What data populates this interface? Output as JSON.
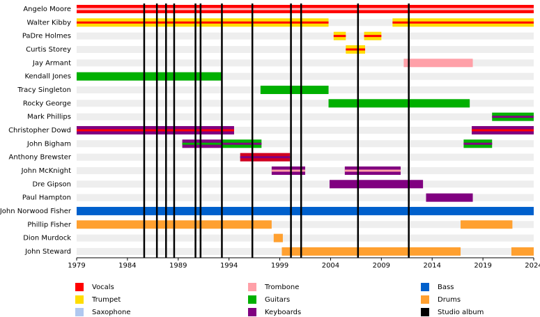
{
  "chart_data": {
    "type": "timeline",
    "xlim": [
      1979,
      2024
    ],
    "xticks": [
      1979,
      1984,
      1989,
      1994,
      1999,
      2004,
      2009,
      2014,
      2019,
      2024
    ],
    "albums": [
      1985.65,
      1986.9,
      1987.8,
      1988.6,
      1990.7,
      1991.2,
      1993.3,
      1996.3,
      2000.1,
      2001.1,
      2006.7,
      2011.7
    ],
    "album_color": "#000000",
    "legend": [
      {
        "name": "Vocals",
        "color": "#ff0000"
      },
      {
        "name": "Trumpet",
        "color": "#ffdd00"
      },
      {
        "name": "Saxophone",
        "color": "#b0c8f0"
      },
      {
        "name": "Trombone",
        "color": "#ffa0a8"
      },
      {
        "name": "Guitars",
        "color": "#00b000"
      },
      {
        "name": "Keyboards",
        "color": "#800080"
      },
      {
        "name": "Bass",
        "color": "#0060cc"
      },
      {
        "name": "Drums",
        "color": "#ffa030"
      },
      {
        "name": "Studio album",
        "color": "#000000"
      }
    ],
    "members": [
      {
        "name": "Angelo Moore",
        "spans": [
          {
            "start": 1979,
            "end": 2024,
            "color": "#ff0000",
            "stripe": "#ffc0c8"
          }
        ]
      },
      {
        "name": "Walter Kibby",
        "spans": [
          {
            "start": 1979,
            "end": 2003.8,
            "color": "#ffdd00",
            "stripe": "#ff0000"
          },
          {
            "start": 2010.1,
            "end": 2024,
            "color": "#ffdd00",
            "stripe": "#ff0000"
          }
        ]
      },
      {
        "name": "PaDre Holmes",
        "spans": [
          {
            "start": 2004.3,
            "end": 2005.5,
            "color": "#ffdd00",
            "stripe": "#ff0000"
          },
          {
            "start": 2007.3,
            "end": 2009,
            "color": "#ffdd00",
            "stripe": "#ff0000"
          }
        ]
      },
      {
        "name": "Curtis Storey",
        "spans": [
          {
            "start": 2005.5,
            "end": 2007.4,
            "color": "#ffdd00",
            "stripe": "#ff0000"
          }
        ]
      },
      {
        "name": "Jay Armant",
        "spans": [
          {
            "start": 2011.2,
            "end": 2018,
            "color": "#ffa0a8"
          }
        ]
      },
      {
        "name": "Kendall Jones",
        "spans": [
          {
            "start": 1979,
            "end": 1993.3,
            "color": "#00b000"
          }
        ]
      },
      {
        "name": "Tracy Singleton",
        "spans": [
          {
            "start": 1997.1,
            "end": 2003.8,
            "color": "#00b000"
          }
        ]
      },
      {
        "name": "Rocky George",
        "spans": [
          {
            "start": 2003.8,
            "end": 2017.7,
            "color": "#00b000"
          }
        ]
      },
      {
        "name": "Mark Phillips",
        "spans": [
          {
            "start": 2019.9,
            "end": 2024,
            "color": "#00b000",
            "stripe": "#800080"
          }
        ]
      },
      {
        "name": "Christopher Dowd",
        "spans": [
          {
            "start": 1979,
            "end": 1994.5,
            "color": "#800080",
            "stripe": "#ff0000"
          },
          {
            "start": 2017.9,
            "end": 2024,
            "color": "#800080",
            "stripe": "#ff0000"
          }
        ]
      },
      {
        "name": "John Bigham",
        "spans": [
          {
            "start": 1989.4,
            "end": 1993.3,
            "color": "#800080",
            "stripe": "#00b000"
          },
          {
            "start": 1993.3,
            "end": 1997.2,
            "color": "#00b000",
            "stripe": "#800080"
          },
          {
            "start": 2017.1,
            "end": 2019.9,
            "color": "#00b000",
            "stripe": "#800080"
          }
        ]
      },
      {
        "name": "Anthony Brewster",
        "spans": [
          {
            "start": 1995.1,
            "end": 2000,
            "color": "#d00020",
            "stripe": "#800080"
          }
        ]
      },
      {
        "name": "John McKnight",
        "spans": [
          {
            "start": 1998.2,
            "end": 2001.5,
            "color": "#800080",
            "stripe": "#ffa0a8"
          },
          {
            "start": 2005.4,
            "end": 2010.9,
            "color": "#800080",
            "stripe": "#ffa0a8"
          }
        ]
      },
      {
        "name": "Dre Gipson",
        "spans": [
          {
            "start": 2003.9,
            "end": 2013.1,
            "color": "#800080"
          }
        ]
      },
      {
        "name": "Paul Hampton",
        "spans": [
          {
            "start": 2013.4,
            "end": 2018,
            "color": "#800080"
          }
        ]
      },
      {
        "name": "John Norwood Fisher",
        "spans": [
          {
            "start": 1979,
            "end": 2024,
            "color": "#0060cc"
          }
        ]
      },
      {
        "name": "Phillip Fisher",
        "spans": [
          {
            "start": 1979,
            "end": 1998.2,
            "color": "#ffa030"
          },
          {
            "start": 2016.8,
            "end": 2021.9,
            "color": "#ffa030"
          }
        ]
      },
      {
        "name": "Dion Murdock",
        "spans": [
          {
            "start": 1998.4,
            "end": 1999.3,
            "color": "#ffa030"
          }
        ]
      },
      {
        "name": "John Steward",
        "spans": [
          {
            "start": 1999.2,
            "end": 2016.8,
            "color": "#ffa030"
          },
          {
            "start": 2021.8,
            "end": 2024,
            "color": "#ffa030"
          }
        ]
      }
    ]
  }
}
